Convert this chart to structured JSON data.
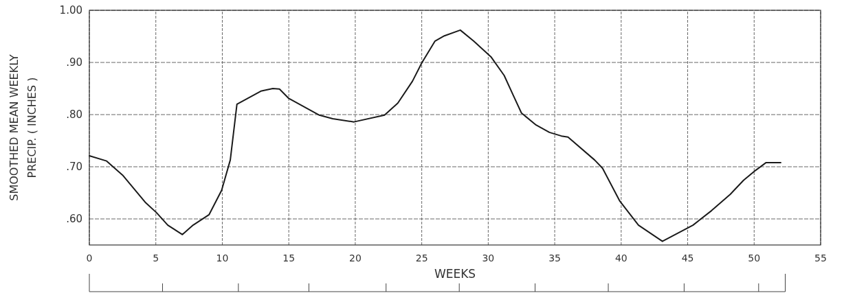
{
  "chart_data": {
    "type": "line",
    "xlabel": "WEEKS",
    "ylabel": "SMOOTHED MEAN WEEKLY PRECIP. ( INCHES )",
    "xlim": [
      0,
      55
    ],
    "ylim": [
      0.55,
      1.0
    ],
    "xticks": [
      0,
      5,
      10,
      15,
      20,
      25,
      30,
      35,
      40,
      45,
      50,
      55
    ],
    "yticks": [
      {
        "value": 0.6,
        "label": ".60"
      },
      {
        "value": 0.7,
        "label": ".70"
      },
      {
        "value": 0.8,
        "label": ".80"
      },
      {
        "value": 0.9,
        "label": ".90"
      },
      {
        "value": 1.0,
        "label": "1.00"
      }
    ],
    "grid": true,
    "marker": "none",
    "line_style": "solid",
    "series": [
      {
        "color": "#1a1a1a",
        "x": [
          0,
          1.3,
          2.5,
          4.2,
          5.05,
          5.9,
          7,
          7.8,
          9,
          9.95,
          10.6,
          11.1,
          12.9,
          13.8,
          14.3,
          15,
          17.3,
          18.3,
          19.9,
          22.2,
          23.2,
          24.3,
          25,
          26,
          26.7,
          27.9,
          28.9,
          30.2,
          31.2,
          31.9,
          32.5,
          33.6,
          34.6,
          35.5,
          36,
          38,
          38.6,
          39.9,
          41.3,
          43.1,
          45.4,
          46.8,
          48.2,
          49.2,
          50.1,
          50.9,
          52
        ],
        "values": [
          0.721,
          0.711,
          0.684,
          0.632,
          0.612,
          0.588,
          0.57,
          0.588,
          0.608,
          0.655,
          0.713,
          0.82,
          0.845,
          0.85,
          0.849,
          0.831,
          0.799,
          0.792,
          0.786,
          0.799,
          0.822,
          0.864,
          0.899,
          0.941,
          0.951,
          0.962,
          0.941,
          0.911,
          0.875,
          0.836,
          0.803,
          0.78,
          0.766,
          0.759,
          0.757,
          0.713,
          0.697,
          0.634,
          0.588,
          0.557,
          0.588,
          0.616,
          0.647,
          0.674,
          0.693,
          0.708,
          0.708
        ]
      }
    ]
  }
}
